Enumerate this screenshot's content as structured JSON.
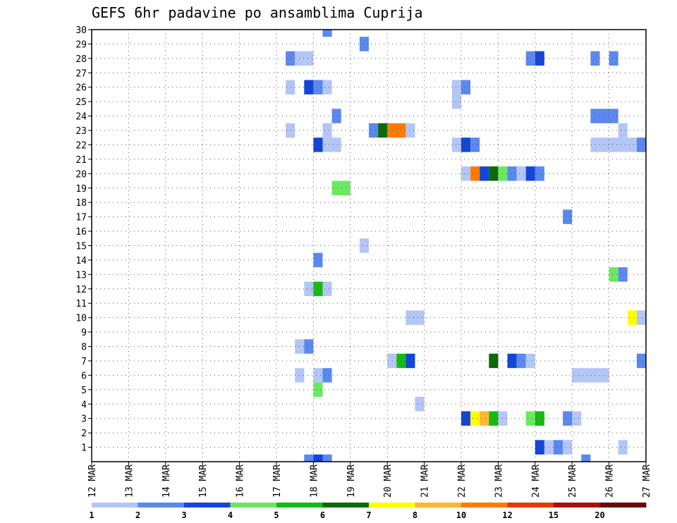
{
  "chart_data": {
    "type": "heatmap",
    "title": "GEFS 6hr padavine po ansamblima Cuprija",
    "x_range": [
      12,
      27
    ],
    "x_ticks": [
      {
        "day": 12,
        "label": "12 MAR"
      },
      {
        "day": 13,
        "label": "13 MAR"
      },
      {
        "day": 14,
        "label": "14 MAR"
      },
      {
        "day": 15,
        "label": "15 MAR"
      },
      {
        "day": 16,
        "label": "16 MAR"
      },
      {
        "day": 17,
        "label": "17 MAR"
      },
      {
        "day": 18,
        "label": "18 MAR"
      },
      {
        "day": 19,
        "label": "19 MAR"
      },
      {
        "day": 20,
        "label": "20 MAR"
      },
      {
        "day": 21,
        "label": "21 MAR"
      },
      {
        "day": 22,
        "label": "22 MAR"
      },
      {
        "day": 23,
        "label": "23 MAR"
      },
      {
        "day": 24,
        "label": "24 MAR"
      },
      {
        "day": 25,
        "label": "25 MAR"
      },
      {
        "day": 26,
        "label": "26 MAR"
      },
      {
        "day": 27,
        "label": "27 MAR"
      }
    ],
    "y_range": [
      0,
      30
    ],
    "y_ticks": [
      "1",
      "2",
      "3",
      "4",
      "5",
      "6",
      "7",
      "8",
      "9",
      "10",
      "11",
      "12",
      "13",
      "14",
      "15",
      "16",
      "17",
      "18",
      "19",
      "20",
      "21",
      "22",
      "23",
      "24",
      "25",
      "26",
      "27",
      "28",
      "29",
      "30"
    ],
    "colorbar": {
      "colors": [
        "#b3c6f5",
        "#5b88ee",
        "#1545d8",
        "#6be85f",
        "#13bb13",
        "#0a6a0a",
        "#ffff00",
        "#ffb733",
        "#ff7a00",
        "#e23a0a",
        "#a80f0f",
        "#6a0808"
      ],
      "labels": [
        "1",
        "2",
        "3",
        "4",
        "5",
        "6",
        "7",
        "8",
        "10",
        "12",
        "15",
        "20"
      ]
    },
    "cells": [
      {
        "m": 30,
        "d0": 18.25,
        "d1": 18.5,
        "c": 2
      },
      {
        "m": 29,
        "d0": 19.25,
        "d1": 19.5,
        "c": 2
      },
      {
        "m": 28,
        "d0": 17.25,
        "d1": 17.5,
        "c": 2
      },
      {
        "m": 28,
        "d0": 17.5,
        "d1": 18.0,
        "c": 1
      },
      {
        "m": 28,
        "d0": 23.75,
        "d1": 24.0,
        "c": 2
      },
      {
        "m": 28,
        "d0": 24.0,
        "d1": 24.25,
        "c": 3
      },
      {
        "m": 28,
        "d0": 25.5,
        "d1": 25.75,
        "c": 2
      },
      {
        "m": 28,
        "d0": 26.0,
        "d1": 26.25,
        "c": 2
      },
      {
        "m": 26,
        "d0": 17.25,
        "d1": 17.5,
        "c": 1
      },
      {
        "m": 26,
        "d0": 17.75,
        "d1": 18.0,
        "c": 3
      },
      {
        "m": 26,
        "d0": 18.0,
        "d1": 18.25,
        "c": 2
      },
      {
        "m": 26,
        "d0": 18.25,
        "d1": 18.5,
        "c": 1
      },
      {
        "m": 26,
        "d0": 21.75,
        "d1": 22.0,
        "c": 1
      },
      {
        "m": 26,
        "d0": 22.0,
        "d1": 22.25,
        "c": 2
      },
      {
        "m": 25,
        "d0": 21.75,
        "d1": 22.0,
        "c": 1
      },
      {
        "m": 24,
        "d0": 18.5,
        "d1": 18.75,
        "c": 2
      },
      {
        "m": 24,
        "d0": 25.5,
        "d1": 26.25,
        "c": 2
      },
      {
        "m": 23,
        "d0": 17.25,
        "d1": 17.5,
        "c": 1
      },
      {
        "m": 23,
        "d0": 18.25,
        "d1": 18.5,
        "c": 1
      },
      {
        "m": 23,
        "d0": 19.5,
        "d1": 19.75,
        "c": 2
      },
      {
        "m": 23,
        "d0": 19.75,
        "d1": 20.0,
        "c": 6
      },
      {
        "m": 23,
        "d0": 20.0,
        "d1": 20.5,
        "c": 9
      },
      {
        "m": 23,
        "d0": 20.5,
        "d1": 20.75,
        "c": 1
      },
      {
        "m": 23,
        "d0": 26.25,
        "d1": 26.5,
        "c": 1
      },
      {
        "m": 22,
        "d0": 18.0,
        "d1": 18.25,
        "c": 3
      },
      {
        "m": 22,
        "d0": 18.25,
        "d1": 18.75,
        "c": 1
      },
      {
        "m": 22,
        "d0": 21.75,
        "d1": 22.0,
        "c": 1
      },
      {
        "m": 22,
        "d0": 22.0,
        "d1": 22.25,
        "c": 3
      },
      {
        "m": 22,
        "d0": 22.25,
        "d1": 22.5,
        "c": 2
      },
      {
        "m": 22,
        "d0": 25.5,
        "d1": 26.75,
        "c": 1
      },
      {
        "m": 22,
        "d0": 26.75,
        "d1": 27.0,
        "c": 2
      },
      {
        "m": 20,
        "d0": 22.0,
        "d1": 22.25,
        "c": 1
      },
      {
        "m": 20,
        "d0": 22.25,
        "d1": 22.5,
        "c": 9
      },
      {
        "m": 20,
        "d0": 22.5,
        "d1": 22.75,
        "c": 3
      },
      {
        "m": 20,
        "d0": 22.75,
        "d1": 23.0,
        "c": 6
      },
      {
        "m": 20,
        "d0": 23.0,
        "d1": 23.25,
        "c": 4
      },
      {
        "m": 20,
        "d0": 23.25,
        "d1": 23.5,
        "c": 2
      },
      {
        "m": 20,
        "d0": 23.5,
        "d1": 23.75,
        "c": 1
      },
      {
        "m": 20,
        "d0": 23.75,
        "d1": 24.0,
        "c": 3
      },
      {
        "m": 20,
        "d0": 24.0,
        "d1": 24.25,
        "c": 2
      },
      {
        "m": 19,
        "d0": 18.5,
        "d1": 19.0,
        "c": 4
      },
      {
        "m": 17,
        "d0": 24.75,
        "d1": 25.0,
        "c": 2
      },
      {
        "m": 15,
        "d0": 19.25,
        "d1": 19.5,
        "c": 1
      },
      {
        "m": 14,
        "d0": 18.0,
        "d1": 18.25,
        "c": 2
      },
      {
        "m": 13,
        "d0": 26.0,
        "d1": 26.25,
        "c": 4
      },
      {
        "m": 13,
        "d0": 26.25,
        "d1": 26.5,
        "c": 2
      },
      {
        "m": 12,
        "d0": 17.75,
        "d1": 18.0,
        "c": 1
      },
      {
        "m": 12,
        "d0": 18.0,
        "d1": 18.25,
        "c": 5
      },
      {
        "m": 12,
        "d0": 18.25,
        "d1": 18.5,
        "c": 1
      },
      {
        "m": 10,
        "d0": 20.5,
        "d1": 21.0,
        "c": 1
      },
      {
        "m": 10,
        "d0": 26.5,
        "d1": 26.75,
        "c": 7
      },
      {
        "m": 10,
        "d0": 26.75,
        "d1": 27.0,
        "c": 1
      },
      {
        "m": 8,
        "d0": 17.5,
        "d1": 17.75,
        "c": 1
      },
      {
        "m": 8,
        "d0": 17.75,
        "d1": 18.0,
        "c": 2
      },
      {
        "m": 7,
        "d0": 20.0,
        "d1": 20.25,
        "c": 1
      },
      {
        "m": 7,
        "d0": 20.25,
        "d1": 20.5,
        "c": 5
      },
      {
        "m": 7,
        "d0": 20.5,
        "d1": 20.75,
        "c": 3
      },
      {
        "m": 7,
        "d0": 22.75,
        "d1": 23.0,
        "c": 6
      },
      {
        "m": 7,
        "d0": 23.25,
        "d1": 23.5,
        "c": 3
      },
      {
        "m": 7,
        "d0": 23.5,
        "d1": 23.75,
        "c": 2
      },
      {
        "m": 7,
        "d0": 23.75,
        "d1": 24.0,
        "c": 1
      },
      {
        "m": 7,
        "d0": 26.75,
        "d1": 27.0,
        "c": 2
      },
      {
        "m": 6,
        "d0": 17.5,
        "d1": 17.75,
        "c": 1
      },
      {
        "m": 6,
        "d0": 18.0,
        "d1": 18.25,
        "c": 1
      },
      {
        "m": 6,
        "d0": 18.25,
        "d1": 18.5,
        "c": 2
      },
      {
        "m": 6,
        "d0": 25.0,
        "d1": 26.0,
        "c": 1
      },
      {
        "m": 5,
        "d0": 18.0,
        "d1": 18.25,
        "c": 4
      },
      {
        "m": 4,
        "d0": 20.75,
        "d1": 21.0,
        "c": 1
      },
      {
        "m": 3,
        "d0": 22.0,
        "d1": 22.25,
        "c": 3
      },
      {
        "m": 3,
        "d0": 22.25,
        "d1": 22.5,
        "c": 7
      },
      {
        "m": 3,
        "d0": 22.5,
        "d1": 22.75,
        "c": 8
      },
      {
        "m": 3,
        "d0": 22.75,
        "d1": 23.0,
        "c": 5
      },
      {
        "m": 3,
        "d0": 23.0,
        "d1": 23.25,
        "c": 1
      },
      {
        "m": 3,
        "d0": 23.75,
        "d1": 24.0,
        "c": 4
      },
      {
        "m": 3,
        "d0": 24.0,
        "d1": 24.25,
        "c": 5
      },
      {
        "m": 3,
        "d0": 24.75,
        "d1": 25.0,
        "c": 2
      },
      {
        "m": 3,
        "d0": 25.0,
        "d1": 25.25,
        "c": 1
      },
      {
        "m": 1,
        "d0": 24.0,
        "d1": 24.25,
        "c": 3
      },
      {
        "m": 1,
        "d0": 24.25,
        "d1": 24.5,
        "c": 1
      },
      {
        "m": 1,
        "d0": 24.5,
        "d1": 24.75,
        "c": 2
      },
      {
        "m": 1,
        "d0": 24.75,
        "d1": 25.0,
        "c": 1
      },
      {
        "m": 1,
        "d0": 26.25,
        "d1": 26.5,
        "c": 1
      },
      {
        "m": 0,
        "d0": 17.75,
        "d1": 18.0,
        "c": 2
      },
      {
        "m": 0,
        "d0": 18.0,
        "d1": 18.25,
        "c": 3
      },
      {
        "m": 0,
        "d0": 18.25,
        "d1": 18.5,
        "c": 2
      },
      {
        "m": 0,
        "d0": 25.25,
        "d1": 25.5,
        "c": 2
      }
    ]
  }
}
